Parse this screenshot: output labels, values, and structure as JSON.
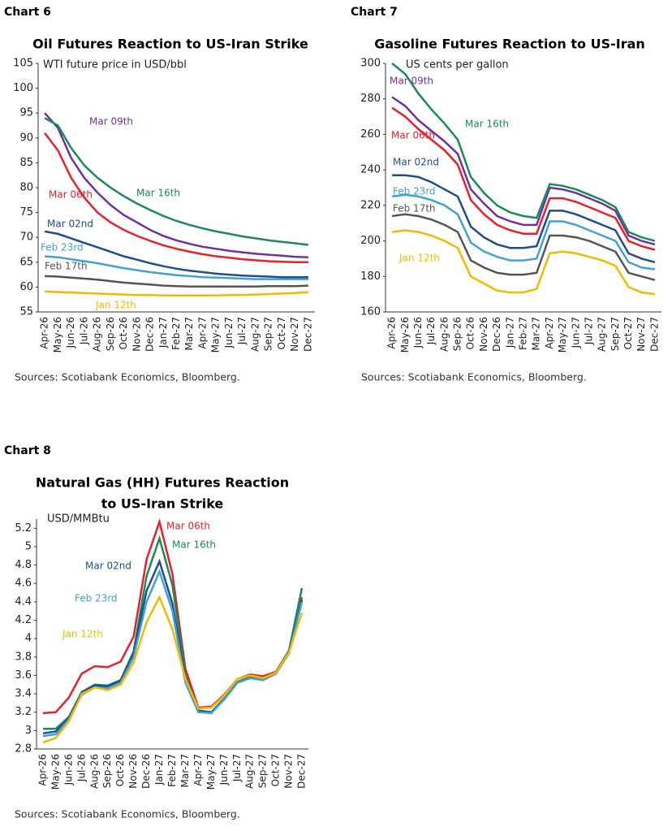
{
  "chart_data": [
    {
      "type": "line",
      "label": "Chart 6",
      "title": "Oil Futures Reaction to US-Iran Strike",
      "y_label": "WTI future price in USD/bbl",
      "source": "Sources: Scotiabank Economics, Bloomberg.",
      "categories": [
        "Apr-26",
        "May-26",
        "Jun-26",
        "Jul-26",
        "Aug-26",
        "Sep-26",
        "Oct-26",
        "Nov-26",
        "Dec-26",
        "Jan-27",
        "Feb-27",
        "Mar-27",
        "Apr-27",
        "May-27",
        "Jun-27",
        "Jul-27",
        "Aug-27",
        "Sep-27",
        "Oct-27",
        "Nov-27",
        "Dec-27"
      ],
      "ylim": [
        55,
        105
      ],
      "yticks": [
        55,
        60,
        65,
        70,
        75,
        80,
        85,
        90,
        95,
        100,
        105
      ],
      "series": [
        {
          "name": "Mar 09th",
          "color": "#7030a0",
          "values": [
            95,
            92,
            86,
            82,
            79,
            76.5,
            74.5,
            73,
            71.5,
            70.3,
            69.4,
            68.7,
            68.1,
            67.7,
            67.3,
            67,
            66.7,
            66.5,
            66.3,
            66.1,
            66
          ]
        },
        {
          "name": "Mar 16th",
          "color": "#1a8a5a",
          "values": [
            94,
            92.5,
            88,
            84.5,
            82,
            80,
            78.3,
            76.8,
            75.5,
            74.3,
            73.3,
            72.5,
            71.8,
            71.2,
            70.7,
            70.2,
            69.8,
            69.4,
            69.1,
            68.8,
            68.5
          ]
        },
        {
          "name": "Mar 06th",
          "color": "#e8202a",
          "values": [
            91,
            87.5,
            82,
            78,
            75,
            73,
            71.5,
            70.3,
            69.3,
            68.4,
            67.7,
            67.1,
            66.6,
            66.2,
            65.9,
            65.6,
            65.4,
            65.2,
            65.1,
            65,
            65
          ]
        },
        {
          "name": "Mar 02nd",
          "color": "#1f4e8c",
          "values": [
            71.2,
            70.7,
            69.8,
            68.9,
            68,
            67.1,
            66.2,
            65.5,
            64.8,
            64.2,
            63.7,
            63.3,
            63,
            62.7,
            62.5,
            62.3,
            62.2,
            62.1,
            62,
            62,
            62
          ]
        },
        {
          "name": "Feb 23rd",
          "color": "#41a0d8",
          "values": [
            66.2,
            66,
            65.6,
            65.2,
            64.8,
            64.3,
            63.8,
            63.4,
            63,
            62.7,
            62.4,
            62.2,
            62,
            61.9,
            61.8,
            61.7,
            61.6,
            61.6,
            61.6,
            61.6,
            61.6
          ]
        },
        {
          "name": "Feb 17th",
          "color": "#555555",
          "values": [
            62.2,
            62.1,
            61.9,
            61.7,
            61.5,
            61.2,
            60.9,
            60.7,
            60.5,
            60.3,
            60.2,
            60.1,
            60.1,
            60.1,
            60.1,
            60.1,
            60.1,
            60.2,
            60.2,
            60.2,
            60.3
          ]
        },
        {
          "name": "Jan 12th",
          "color": "#f5b800",
          "values": [
            59.1,
            59,
            58.9,
            58.8,
            58.7,
            58.6,
            58.5,
            58.4,
            58.4,
            58.3,
            58.3,
            58.3,
            58.3,
            58.3,
            58.4,
            58.4,
            58.5,
            58.6,
            58.7,
            58.8,
            59
          ]
        }
      ]
    },
    {
      "type": "line",
      "label": "Chart 7",
      "title": "Gasoline Futures Reaction to US-Iran",
      "y_label": "US cents per gallon",
      "source": "Sources: Scotiabank Economics, Bloomberg.",
      "categories": [
        "Apr-26",
        "May-26",
        "Jun-26",
        "Jul-26",
        "Aug-26",
        "Sep-26",
        "Oct-26",
        "Nov-26",
        "Dec-26",
        "Jan-27",
        "Feb-27",
        "Mar-27",
        "Apr-27",
        "May-27",
        "Jun-27",
        "Jul-27",
        "Aug-27",
        "Sep-27",
        "Oct-27",
        "Nov-27",
        "Dec-27"
      ],
      "ylim": [
        160,
        300
      ],
      "yticks": [
        160,
        180,
        200,
        220,
        240,
        260,
        280,
        300
      ],
      "series": [
        {
          "name": "Mar 09th",
          "color": "#7030a0",
          "values": [
            281,
            276,
            268,
            262,
            256,
            249,
            229,
            221,
            214,
            211,
            209,
            209,
            230,
            229,
            227,
            224,
            221,
            217,
            203,
            200,
            198
          ]
        },
        {
          "name": "Mar 16th",
          "color": "#1a8a5a",
          "values": [
            300,
            294,
            283,
            274,
            266,
            257,
            236,
            227,
            220,
            216,
            214,
            213,
            232,
            231,
            229,
            226,
            223,
            219,
            205,
            202,
            200
          ]
        },
        {
          "name": "Mar 06th",
          "color": "#e8202a",
          "values": [
            275,
            270,
            263,
            257,
            251,
            243,
            223,
            215,
            209,
            206,
            204,
            204,
            224,
            224,
            222,
            219,
            216,
            213,
            200,
            197,
            195
          ]
        },
        {
          "name": "Mar 02nd",
          "color": "#1f4e8c",
          "values": [
            237,
            237,
            236,
            233,
            229,
            225,
            208,
            202,
            198,
            196,
            196,
            197,
            217,
            217,
            215,
            212,
            209,
            206,
            193,
            190,
            188
          ]
        },
        {
          "name": "Feb 23rd",
          "color": "#41a0d8",
          "values": [
            225,
            226,
            225,
            223,
            220,
            215,
            199,
            194,
            191,
            189,
            189,
            190,
            211,
            211,
            209,
            206,
            203,
            200,
            188,
            185,
            184
          ]
        },
        {
          "name": "Feb 17th",
          "color": "#555555",
          "values": [
            214,
            215,
            214,
            212,
            209,
            205,
            189,
            185,
            182,
            181,
            181,
            182,
            203,
            203,
            202,
            200,
            197,
            194,
            182,
            180,
            178
          ]
        },
        {
          "name": "Jan 12th",
          "color": "#f5b800",
          "values": [
            205,
            206,
            205,
            203,
            200,
            196,
            180,
            176,
            172,
            171,
            171,
            173,
            193,
            194,
            193,
            191,
            189,
            186,
            174,
            171,
            170
          ]
        }
      ]
    },
    {
      "type": "line",
      "label": "Chart 8",
      "title": [
        "Natural Gas (HH) Futures Reaction",
        "to US-Iran Strike"
      ],
      "y_label": "USD/MMBtu",
      "source": "Sources: Scotiabank Economics, Bloomberg.",
      "categories": [
        "Apr-26",
        "May-26",
        "Jun-26",
        "Jul-26",
        "Aug-26",
        "Sep-26",
        "Oct-26",
        "Nov-26",
        "Dec-26",
        "Jan-27",
        "Feb-27",
        "Mar-27",
        "Apr-27",
        "May-27",
        "Jun-27",
        "Jul-27",
        "Aug-27",
        "Sep-27",
        "Oct-27",
        "Nov-27",
        "Dec-27"
      ],
      "ylim": [
        2.8,
        5.3
      ],
      "yticks": [
        2.8,
        3.0,
        3.2,
        3.4,
        3.6,
        3.8,
        4.0,
        4.2,
        4.4,
        4.6,
        4.8,
        5.0,
        5.2
      ],
      "series": [
        {
          "name": "Mar 06th",
          "color": "#e8202a",
          "values": [
            3.19,
            3.2,
            3.36,
            3.62,
            3.7,
            3.69,
            3.75,
            4.02,
            4.86,
            5.27,
            4.7,
            3.67,
            3.25,
            3.26,
            3.39,
            3.56,
            3.61,
            3.59,
            3.64,
            3.87,
            4.45
          ]
        },
        {
          "name": "Mar 16th",
          "color": "#1a8a5a",
          "values": [
            3.02,
            3.02,
            3.15,
            3.42,
            3.5,
            3.49,
            3.55,
            3.86,
            4.68,
            5.09,
            4.58,
            3.6,
            3.22,
            3.2,
            3.35,
            3.53,
            3.58,
            3.56,
            3.63,
            3.87,
            4.55
          ]
        },
        {
          "name": "Mar 02nd",
          "color": "#1f4e8c",
          "values": [
            2.97,
            2.99,
            3.13,
            3.41,
            3.49,
            3.48,
            3.54,
            3.84,
            4.52,
            4.84,
            4.38,
            3.55,
            3.21,
            3.2,
            3.34,
            3.52,
            3.57,
            3.55,
            3.62,
            3.85,
            4.42
          ]
        },
        {
          "name": "Feb 23rd",
          "color": "#41a0d8",
          "values": [
            2.94,
            2.96,
            3.12,
            3.39,
            3.47,
            3.46,
            3.52,
            3.8,
            4.4,
            4.73,
            4.3,
            3.52,
            3.2,
            3.19,
            3.34,
            3.52,
            3.57,
            3.55,
            3.62,
            3.84,
            4.4
          ]
        },
        {
          "name": "Jan 12th",
          "color": "#f5b800",
          "values": [
            2.87,
            2.92,
            3.1,
            3.4,
            3.47,
            3.44,
            3.5,
            3.74,
            4.18,
            4.45,
            4.1,
            3.56,
            3.24,
            3.25,
            3.38,
            3.56,
            3.6,
            3.57,
            3.63,
            3.85,
            4.28
          ]
        }
      ]
    }
  ]
}
